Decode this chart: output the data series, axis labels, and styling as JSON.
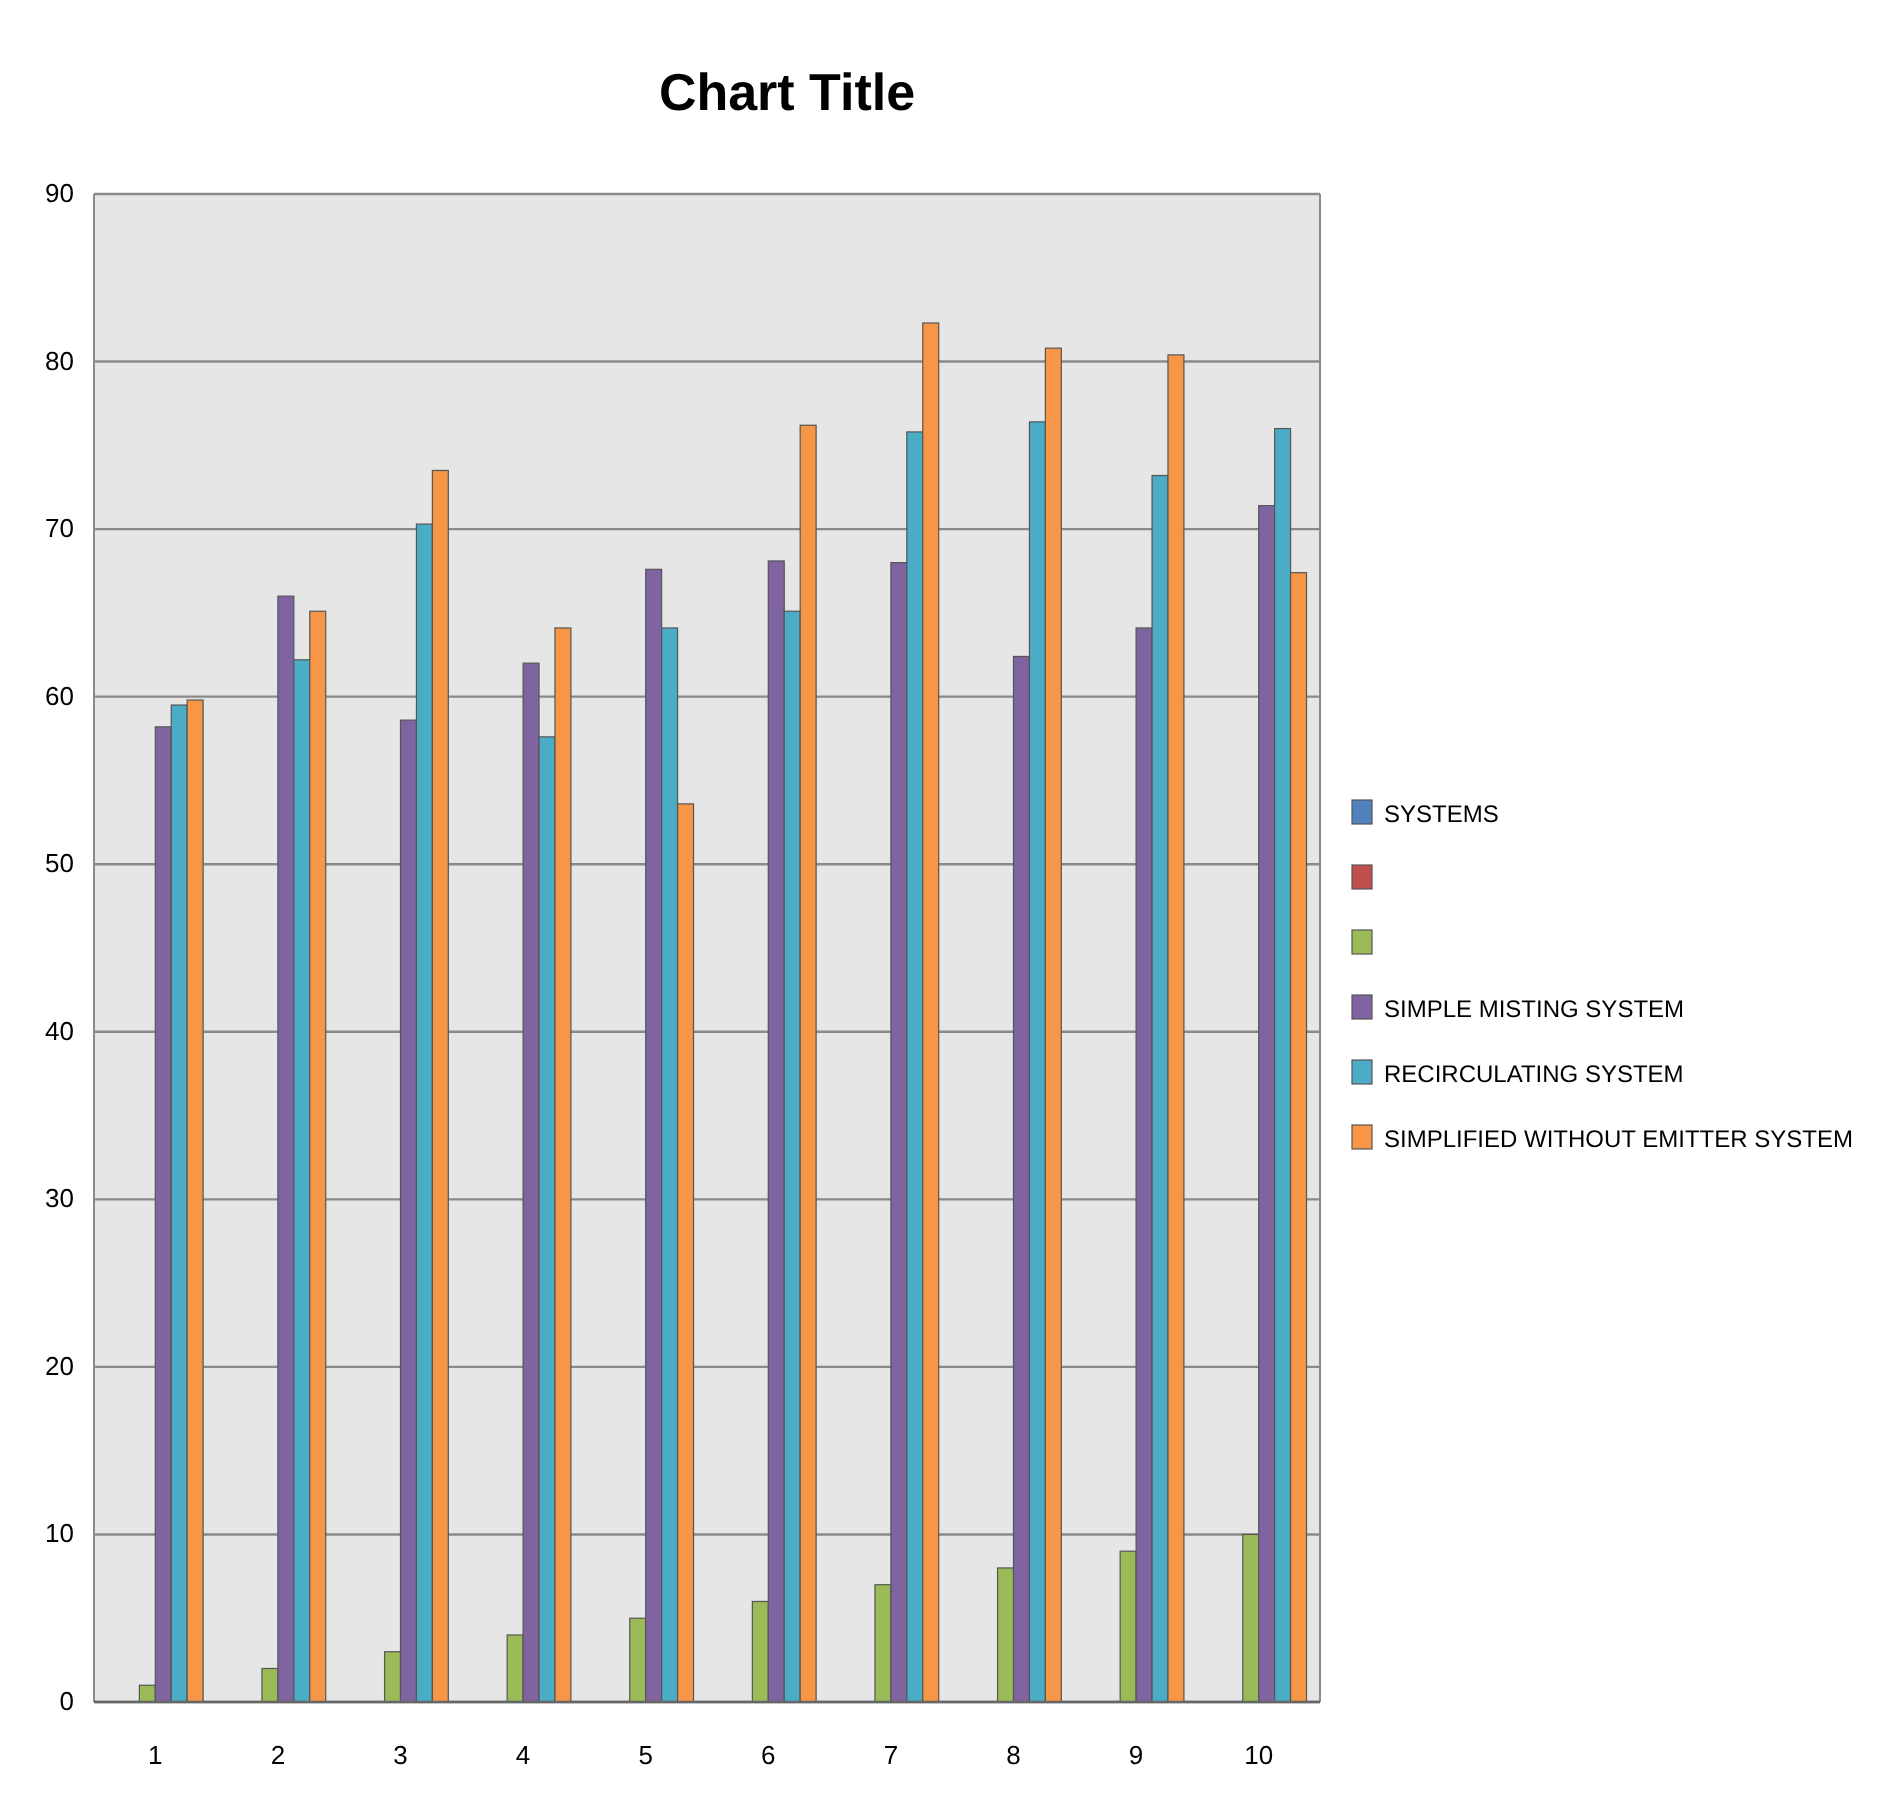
{
  "chart_data": {
    "type": "bar",
    "title": "Chart Title",
    "categories": [
      "1",
      "2",
      "3",
      "4",
      "5",
      "6",
      "7",
      "8",
      "9",
      "10"
    ],
    "series": [
      {
        "name": "SYSTEMS",
        "color": "#4f81bd",
        "values": [
          null,
          null,
          null,
          null,
          null,
          null,
          null,
          null,
          null,
          null
        ]
      },
      {
        "color": "#c0504d",
        "values": [
          null,
          null,
          null,
          null,
          null,
          null,
          null,
          null,
          null,
          null
        ]
      },
      {
        "color": "#9bbb59",
        "values": [
          1,
          2,
          3,
          4,
          5,
          6,
          7,
          8,
          9,
          10
        ]
      },
      {
        "name": "SIMPLE MISTING SYSTEM",
        "color": "#8064a2",
        "values": [
          58.2,
          66,
          58.6,
          62,
          67.6,
          68.1,
          68,
          62.4,
          64.1,
          71.4
        ]
      },
      {
        "name": "RECIRCULATING SYSTEM",
        "color": "#4bacc6",
        "values": [
          59.5,
          62.2,
          70.3,
          57.6,
          64.1,
          65.1,
          75.8,
          76.4,
          73.2,
          76
        ]
      },
      {
        "name": "SIMPLIFIED WITHOUT EMITTER SYSTEM",
        "color": "#f79646",
        "values": [
          59.8,
          65.1,
          73.5,
          64.1,
          53.6,
          76.2,
          82.3,
          80.8,
          80.4,
          67.4
        ]
      }
    ],
    "ylim": [
      0,
      90
    ],
    "yticks": [
      0,
      10,
      20,
      30,
      40,
      50,
      60,
      70,
      80,
      90
    ],
    "grid": "y",
    "legend": "right"
  }
}
